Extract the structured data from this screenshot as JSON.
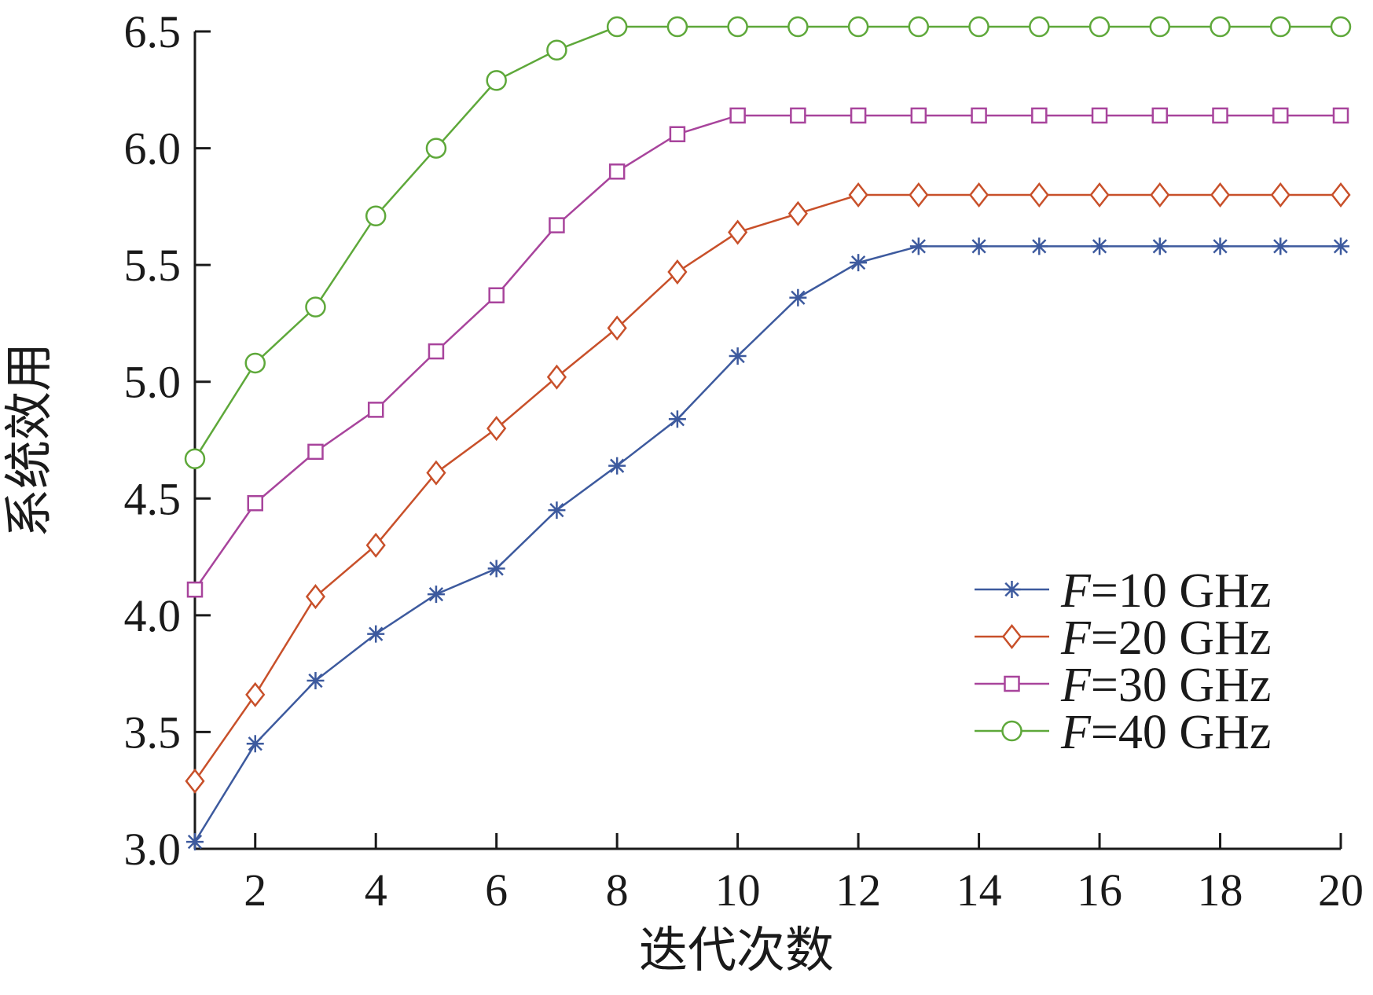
{
  "chart_data": {
    "type": "line",
    "xlabel": "迭代次数",
    "ylabel": "系统效用",
    "xlim": [
      1,
      20
    ],
    "ylim": [
      3.0,
      6.5
    ],
    "xticks": [
      2,
      4,
      6,
      8,
      10,
      12,
      14,
      16,
      18,
      20
    ],
    "yticks": [
      3.0,
      3.5,
      4.0,
      4.5,
      5.0,
      5.5,
      6.0,
      6.5
    ],
    "ytick_labels": [
      "3.0",
      "3.5",
      "4.0",
      "4.5",
      "5.0",
      "5.5",
      "6.0",
      "6.5"
    ],
    "grid": false,
    "legend_position": "bottom-right",
    "x": [
      1,
      2,
      3,
      4,
      5,
      6,
      7,
      8,
      9,
      10,
      11,
      12,
      13,
      14,
      15,
      16,
      17,
      18,
      19,
      20
    ],
    "series": [
      {
        "name_prefix": "F",
        "name_rest": "=10 GHz",
        "color": "#3d5a9e",
        "marker": "asterisk",
        "values": [
          3.03,
          3.45,
          3.72,
          3.92,
          4.09,
          4.2,
          4.45,
          4.64,
          4.84,
          5.11,
          5.36,
          5.51,
          5.58,
          5.58,
          5.58,
          5.58,
          5.58,
          5.58,
          5.58,
          5.58
        ]
      },
      {
        "name_prefix": "F",
        "name_rest": "=20 GHz",
        "color": "#c8502a",
        "marker": "diamond",
        "values": [
          3.29,
          3.66,
          4.08,
          4.3,
          4.61,
          4.8,
          5.02,
          5.23,
          5.47,
          5.64,
          5.72,
          5.8,
          5.8,
          5.8,
          5.8,
          5.8,
          5.8,
          5.8,
          5.8,
          5.8
        ]
      },
      {
        "name_prefix": "F",
        "name_rest": "=30 GHz",
        "color": "#a8449c",
        "marker": "square",
        "values": [
          4.11,
          4.48,
          4.7,
          4.88,
          5.13,
          5.37,
          5.67,
          5.9,
          6.06,
          6.14,
          6.14,
          6.14,
          6.14,
          6.14,
          6.14,
          6.14,
          6.14,
          6.14,
          6.14,
          6.14
        ]
      },
      {
        "name_prefix": "F",
        "name_rest": "=40 GHz",
        "color": "#5ea83a",
        "marker": "circle",
        "values": [
          4.67,
          5.08,
          5.32,
          5.71,
          6.0,
          6.29,
          6.42,
          6.52,
          6.52,
          6.52,
          6.52,
          6.52,
          6.52,
          6.52,
          6.52,
          6.52,
          6.52,
          6.52,
          6.52,
          6.52
        ]
      }
    ]
  }
}
